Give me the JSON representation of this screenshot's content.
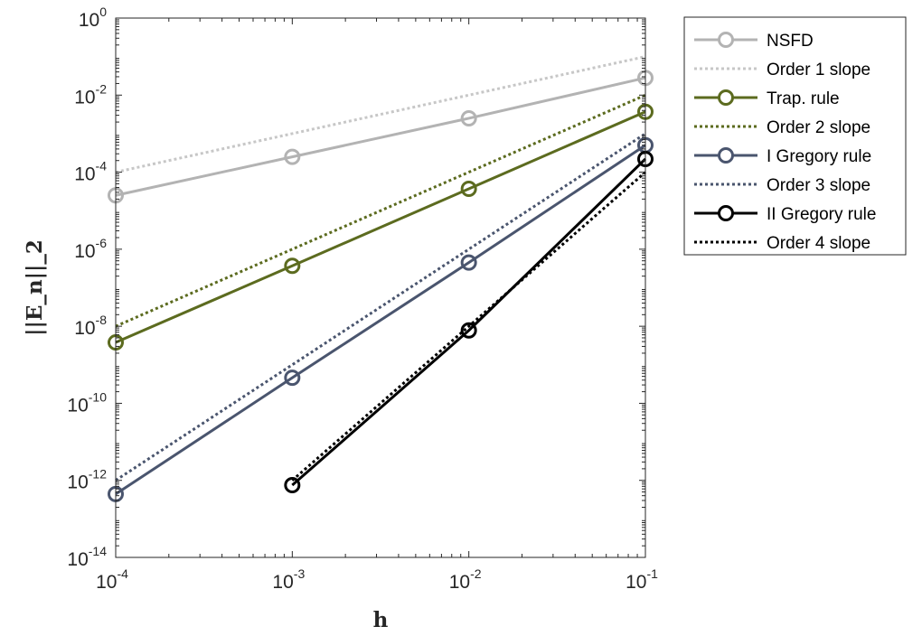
{
  "chart_data": {
    "type": "line",
    "xlabel": "h",
    "ylabel": "||E_n||_2",
    "x_scale": "log",
    "y_scale": "log",
    "xlim": [
      0.0001,
      0.1
    ],
    "ylim": [
      1e-14,
      1
    ],
    "x_ticks": [
      {
        "base": "10",
        "exp": "-4",
        "value": 0.0001
      },
      {
        "base": "10",
        "exp": "-3",
        "value": 0.001
      },
      {
        "base": "10",
        "exp": "-2",
        "value": 0.01
      },
      {
        "base": "10",
        "exp": "-1",
        "value": 0.1
      }
    ],
    "y_ticks": [
      {
        "base": "10",
        "exp": "0",
        "value": 1
      },
      {
        "base": "10",
        "exp": "-2",
        "value": 0.01
      },
      {
        "base": "10",
        "exp": "-4",
        "value": 0.0001
      },
      {
        "base": "10",
        "exp": "-6",
        "value": 1e-06
      },
      {
        "base": "10",
        "exp": "-8",
        "value": 1e-08
      },
      {
        "base": "10",
        "exp": "-10",
        "value": 1e-10
      },
      {
        "base": "10",
        "exp": "-12",
        "value": 1e-12
      },
      {
        "base": "10",
        "exp": "-14",
        "value": 1e-14
      }
    ],
    "grid": false,
    "legend_position": "outside-top-right",
    "series": [
      {
        "name": "NSFD",
        "color": "#b3b3b3",
        "style": "solid",
        "marker": "circle",
        "x": [
          0.0001,
          0.001,
          0.01,
          0.1
        ],
        "y": [
          2.5e-05,
          0.00025,
          0.0025,
          0.028
        ]
      },
      {
        "name": "Order 1 slope",
        "color": "#c7c7c7",
        "style": "dotted",
        "marker": "none",
        "x": [
          0.0001,
          0.1
        ],
        "y": [
          0.0001,
          0.1
        ]
      },
      {
        "name": "Trap. rule",
        "color": "#5c6b1f",
        "style": "solid",
        "marker": "circle",
        "x": [
          0.0001,
          0.001,
          0.01,
          0.1
        ],
        "y": [
          3.8e-09,
          3.7e-07,
          3.7e-05,
          0.0037
        ]
      },
      {
        "name": "Order 2 slope",
        "color": "#5c6b1f",
        "style": "dotted",
        "marker": "none",
        "x": [
          0.0001,
          0.1
        ],
        "y": [
          1e-08,
          0.01
        ]
      },
      {
        "name": "I Gregory rule",
        "color": "#4a556e",
        "style": "solid",
        "marker": "circle",
        "x": [
          0.0001,
          0.001,
          0.01,
          0.1
        ],
        "y": [
          4.4e-13,
          4.6e-10,
          4.5e-07,
          0.0005
        ]
      },
      {
        "name": "Order 3 slope",
        "color": "#4a556e",
        "style": "dotted",
        "marker": "none",
        "x": [
          0.0001,
          0.1
        ],
        "y": [
          1e-12,
          0.001
        ]
      },
      {
        "name": "II Gregory rule",
        "color": "#000000",
        "style": "solid",
        "marker": "circle",
        "x": [
          0.001,
          0.01,
          0.1
        ],
        "y": [
          7.5e-13,
          7.8e-09,
          0.00022
        ]
      },
      {
        "name": "Order 4 slope",
        "color": "#000000",
        "style": "dotted",
        "marker": "none",
        "x": [
          0.001,
          0.1
        ],
        "y": [
          1e-12,
          0.0001
        ]
      }
    ]
  }
}
